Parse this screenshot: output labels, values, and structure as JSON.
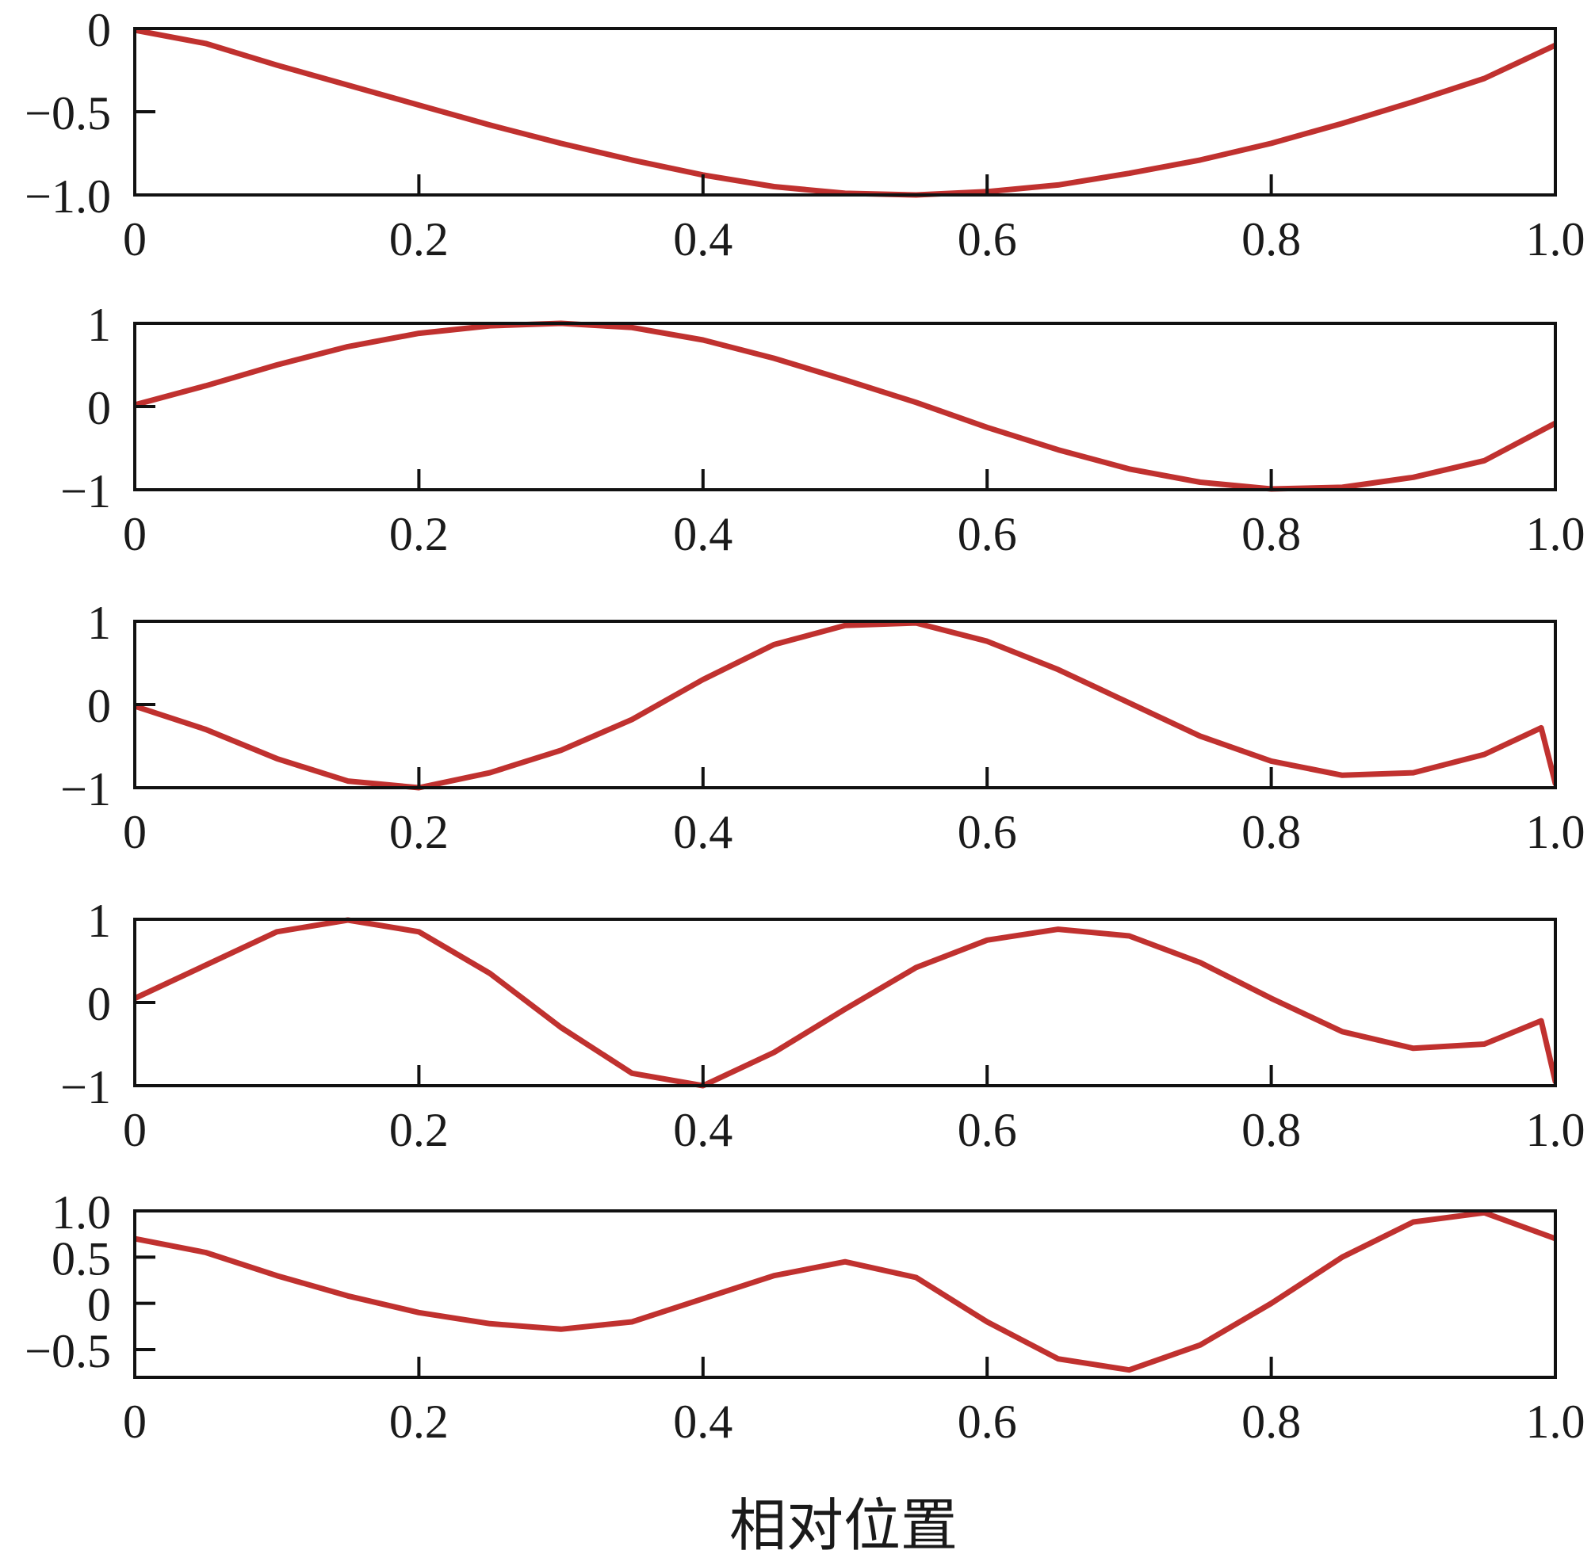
{
  "chart_data": {
    "type": "line",
    "xlabel": "相对位置",
    "xlim": [
      0,
      1
    ],
    "xticks": [
      0,
      0.2,
      0.4,
      0.6,
      0.8,
      1.0
    ],
    "xtick_labels": [
      "0",
      "0.2",
      "0.4",
      "0.6",
      "0.8",
      "1.0"
    ],
    "line_color": "#c0312f",
    "subplots": [
      {
        "ylim": [
          -1,
          0
        ],
        "yticks": [
          0,
          -0.5,
          -1
        ],
        "ytick_labels": [
          "0",
          "−0.5",
          "−1.0"
        ],
        "x": [
          0,
          0.05,
          0.1,
          0.15,
          0.2,
          0.25,
          0.3,
          0.35,
          0.4,
          0.45,
          0.5,
          0.55,
          0.6,
          0.65,
          0.7,
          0.75,
          0.8,
          0.85,
          0.9,
          0.95,
          1.0
        ],
        "y": [
          -0.01,
          -0.09,
          -0.22,
          -0.34,
          -0.46,
          -0.58,
          -0.69,
          -0.79,
          -0.88,
          -0.95,
          -0.99,
          -1.0,
          -0.98,
          -0.94,
          -0.87,
          -0.79,
          -0.69,
          -0.57,
          -0.44,
          -0.3,
          -0.1
        ]
      },
      {
        "ylim": [
          -1,
          1
        ],
        "yticks": [
          1,
          0,
          -1
        ],
        "ytick_labels": [
          "1",
          "0",
          "−1"
        ],
        "x": [
          0,
          0.05,
          0.1,
          0.15,
          0.2,
          0.25,
          0.3,
          0.35,
          0.4,
          0.45,
          0.5,
          0.55,
          0.6,
          0.65,
          0.7,
          0.75,
          0.8,
          0.85,
          0.9,
          0.95,
          1.0
        ],
        "y": [
          0.02,
          0.25,
          0.5,
          0.72,
          0.88,
          0.97,
          1.0,
          0.95,
          0.8,
          0.58,
          0.32,
          0.05,
          -0.25,
          -0.52,
          -0.75,
          -0.91,
          -0.99,
          -0.97,
          -0.85,
          -0.65,
          -0.2
        ]
      },
      {
        "ylim": [
          -1,
          1
        ],
        "yticks": [
          1,
          0,
          -1
        ],
        "ytick_labels": [
          "1",
          "0",
          "−1"
        ],
        "x": [
          0,
          0.05,
          0.1,
          0.15,
          0.2,
          0.25,
          0.3,
          0.35,
          0.4,
          0.45,
          0.5,
          0.55,
          0.6,
          0.65,
          0.7,
          0.75,
          0.8,
          0.85,
          0.9,
          0.95,
          0.99,
          1.0
        ],
        "y": [
          -0.02,
          -0.3,
          -0.65,
          -0.92,
          -1.0,
          -0.82,
          -0.55,
          -0.18,
          0.3,
          0.72,
          0.95,
          0.98,
          0.76,
          0.42,
          0.02,
          -0.38,
          -0.68,
          -0.85,
          -0.82,
          -0.6,
          -0.28,
          -0.95
        ]
      },
      {
        "ylim": [
          -1,
          1
        ],
        "yticks": [
          1,
          0,
          -1
        ],
        "ytick_labels": [
          "1",
          "0",
          "−1"
        ],
        "x": [
          0,
          0.05,
          0.1,
          0.15,
          0.2,
          0.25,
          0.3,
          0.35,
          0.4,
          0.45,
          0.5,
          0.55,
          0.6,
          0.65,
          0.7,
          0.75,
          0.8,
          0.85,
          0.9,
          0.95,
          0.99,
          1.0
        ],
        "y": [
          0.05,
          0.45,
          0.85,
          0.99,
          0.85,
          0.35,
          -0.3,
          -0.85,
          -1.0,
          -0.6,
          -0.08,
          0.42,
          0.75,
          0.88,
          0.8,
          0.48,
          0.05,
          -0.35,
          -0.55,
          -0.5,
          -0.22,
          -0.95
        ]
      },
      {
        "ylim": [
          -0.8,
          1.0
        ],
        "yticks": [
          1.0,
          0.5,
          0,
          -0.5
        ],
        "ytick_labels": [
          "1.0",
          "0.5",
          "0",
          "−0.5"
        ],
        "x": [
          0,
          0.05,
          0.1,
          0.15,
          0.2,
          0.25,
          0.3,
          0.35,
          0.4,
          0.45,
          0.5,
          0.55,
          0.6,
          0.65,
          0.7,
          0.75,
          0.8,
          0.85,
          0.9,
          0.95,
          1.0
        ],
        "y": [
          0.7,
          0.55,
          0.3,
          0.08,
          -0.1,
          -0.22,
          -0.28,
          -0.2,
          0.05,
          0.3,
          0.45,
          0.28,
          -0.2,
          -0.6,
          -0.72,
          -0.45,
          0.0,
          0.5,
          0.88,
          0.98,
          0.7
        ]
      }
    ]
  }
}
